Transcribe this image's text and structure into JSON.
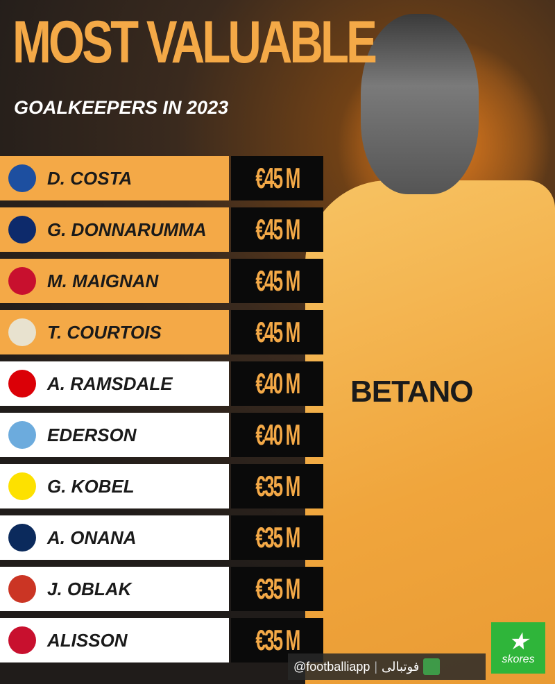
{
  "header": {
    "title": "MOST VALUABLE",
    "subtitle": "GOALKEEPERS IN 2023"
  },
  "colors": {
    "accent": "#f4a947",
    "row_highlight": "#f4a947",
    "row_normal": "#ffffff",
    "value_bg": "#0a0a0a"
  },
  "players": [
    {
      "name": "D. COSTA",
      "value": "€45 M",
      "club_icon": "fc-porto-crest",
      "highlight": true
    },
    {
      "name": "G. DONNARUMMA",
      "value": "€45 M",
      "club_icon": "psg-crest",
      "highlight": true
    },
    {
      "name": "M. MAIGNAN",
      "value": "€45 M",
      "club_icon": "ac-milan-crest",
      "highlight": true
    },
    {
      "name": "T. COURTOIS",
      "value": "€45 M",
      "club_icon": "real-madrid-crest",
      "highlight": true
    },
    {
      "name": "A. RAMSDALE",
      "value": "€40 M",
      "club_icon": "arsenal-crest",
      "highlight": false
    },
    {
      "name": "EDERSON",
      "value": "€40 M",
      "club_icon": "man-city-crest",
      "highlight": false
    },
    {
      "name": "G. KOBEL",
      "value": "€35 M",
      "club_icon": "bvb-crest",
      "highlight": false
    },
    {
      "name": "A. ONANA",
      "value": "€35 M",
      "club_icon": "inter-crest",
      "highlight": false
    },
    {
      "name": "J. OBLAK",
      "value": "€35 M",
      "club_icon": "atletico-crest",
      "highlight": false
    },
    {
      "name": "ALISSON",
      "value": "€35 M",
      "club_icon": "liverpool-crest",
      "highlight": false
    }
  ],
  "photo": {
    "sponsor": "BETANO"
  },
  "footer": {
    "handle": "@footballiapp",
    "brand": "فوتبالی",
    "partner": "skores"
  }
}
